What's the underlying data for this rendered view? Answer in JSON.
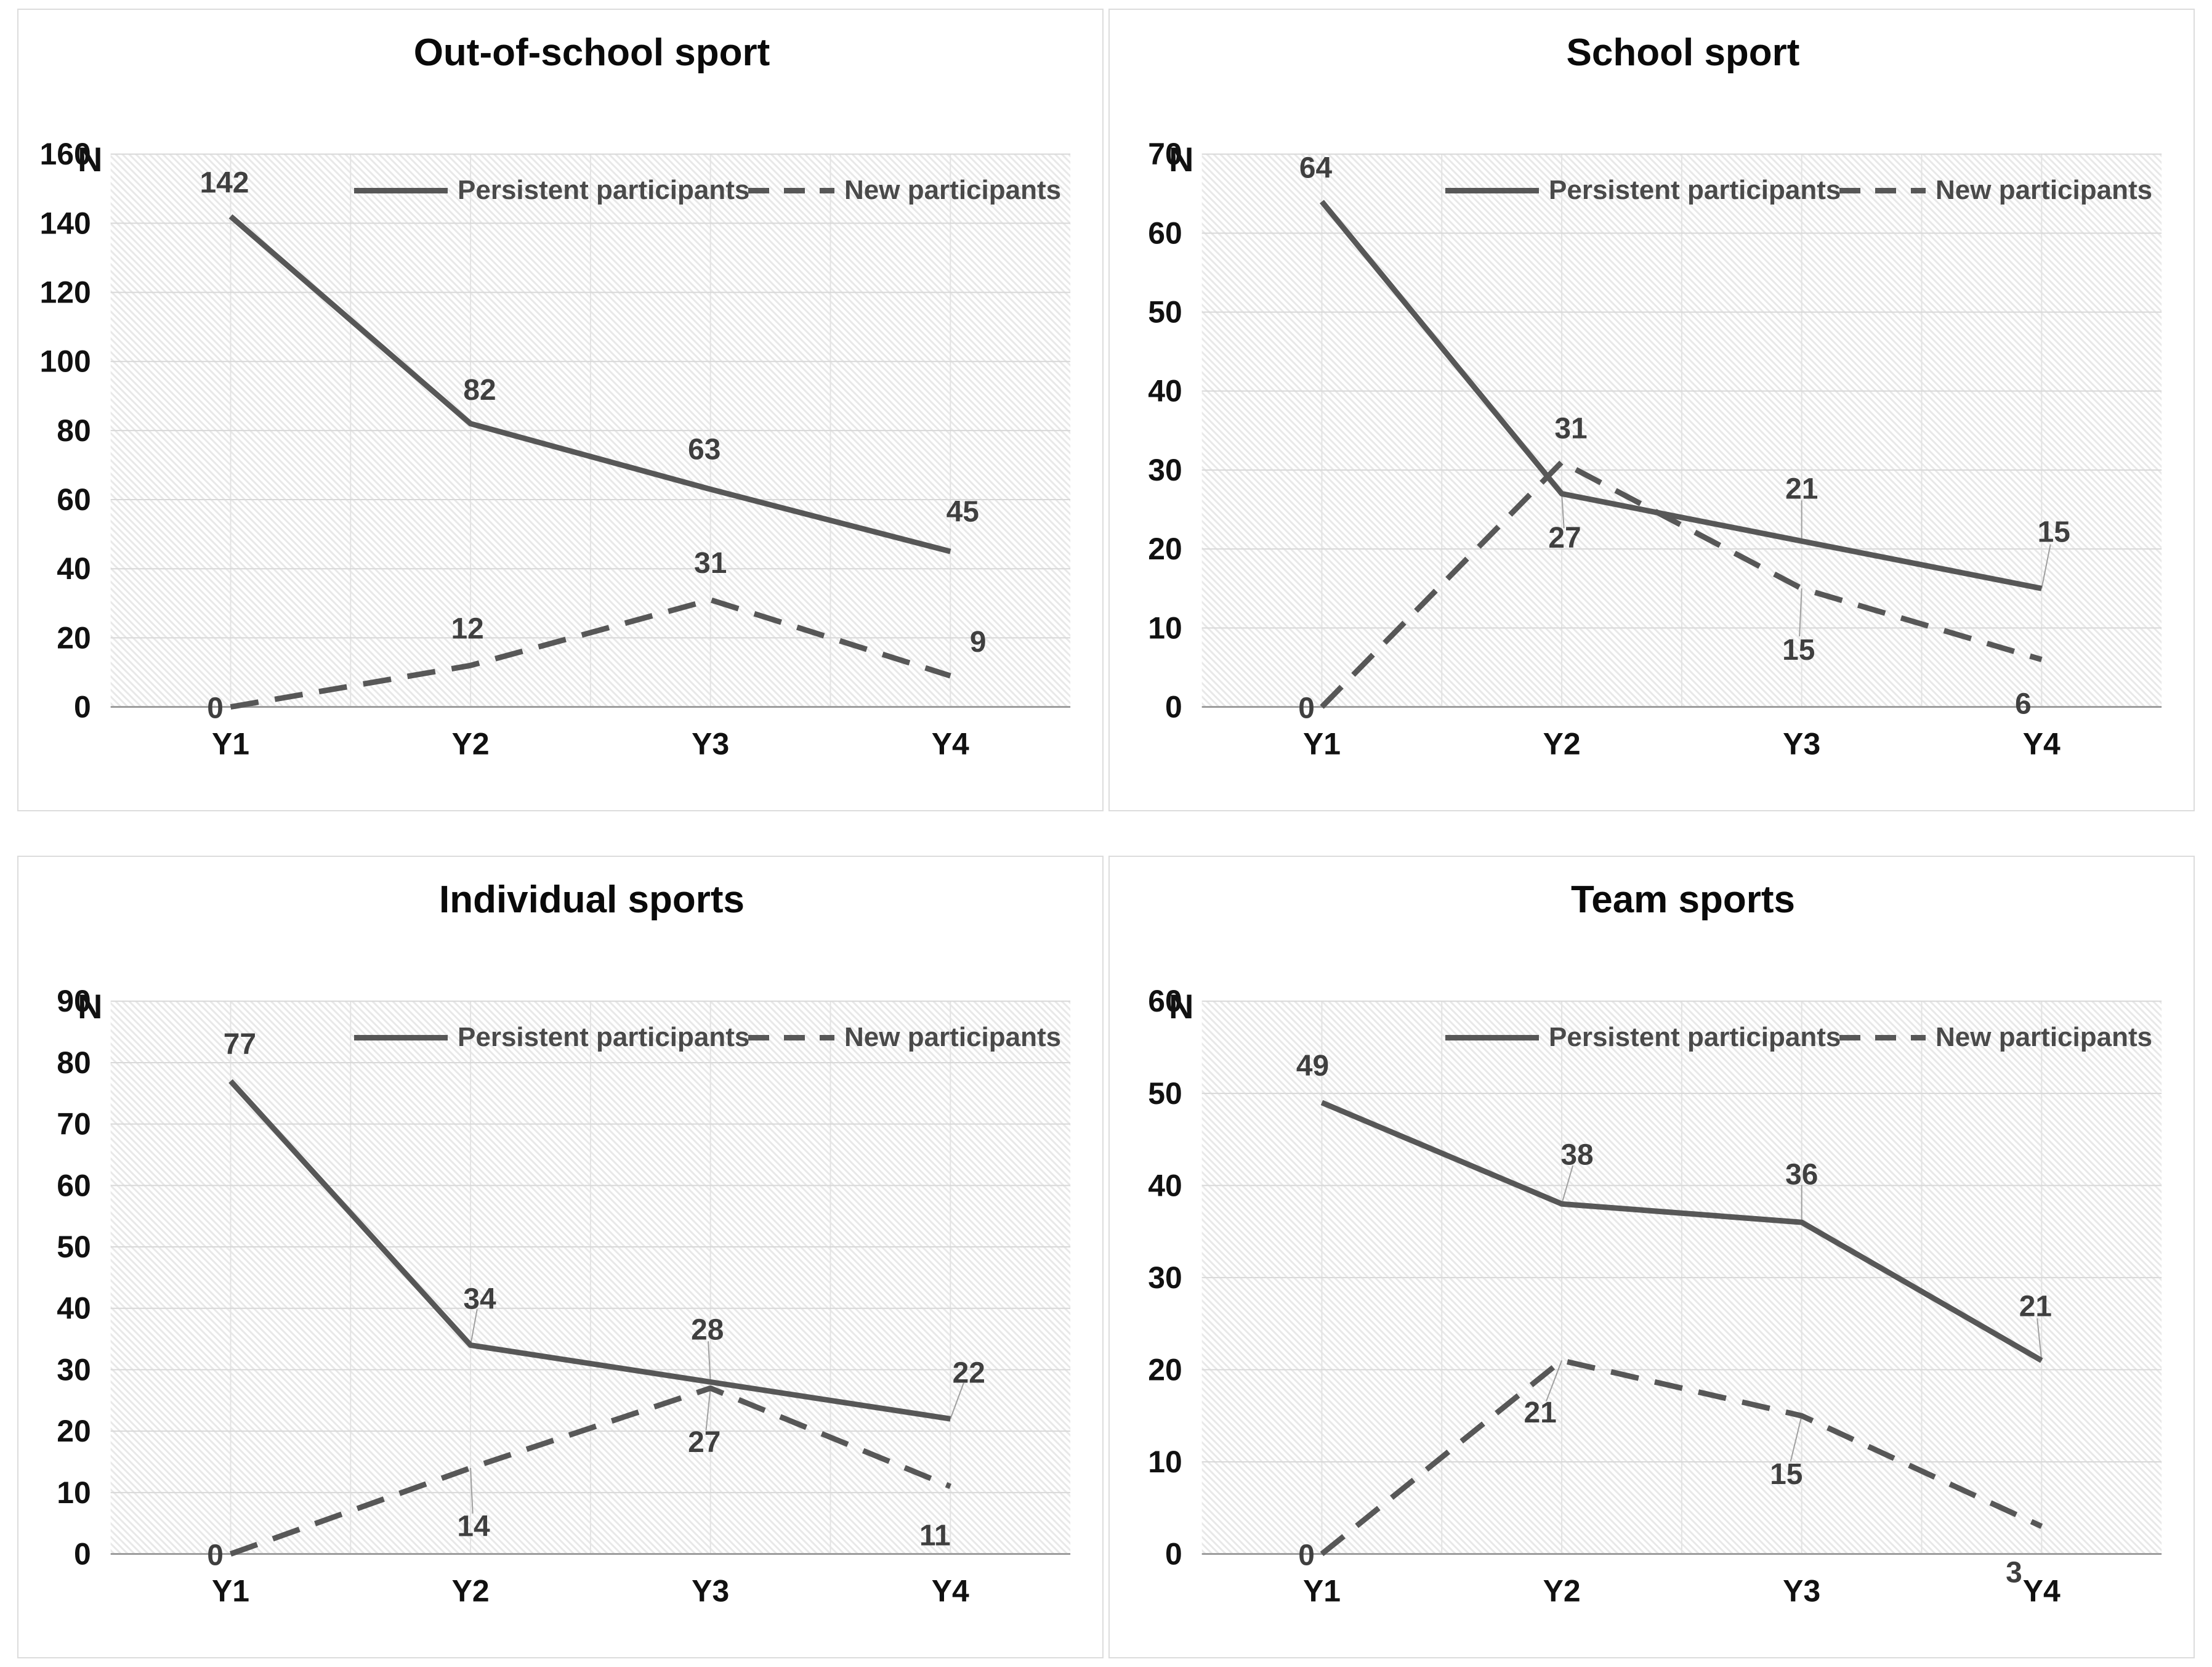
{
  "axis_label": "N",
  "legend": {
    "persistent": "Persistent participants",
    "new": "New participants"
  },
  "colors": {
    "line": "#575757",
    "data_label": "#3f3f3f",
    "tick_label": "#111111",
    "grid_h": "#d8d8d8",
    "grid_v": "#e3e3e3",
    "axis": "#9d9d9d",
    "leader": "#a0a0a0",
    "hatch": "#e8e8e8",
    "panel_border": "#dcdcdc"
  },
  "chart_data": [
    {
      "type": "line",
      "title": "Out-of-school sport",
      "ylabel": "N",
      "xlabel": "",
      "ylim": [
        0,
        160
      ],
      "ytick_step": 20,
      "grid": true,
      "legend_position": "top-inside",
      "categories": [
        "Y1",
        "Y2",
        "Y3",
        "Y4"
      ],
      "series": [
        {
          "name": "Persistent participants",
          "style": "solid",
          "values": [
            142,
            82,
            63,
            45
          ],
          "label_offsets": [
            [
              -10,
              -55,
              0
            ],
            [
              15,
              -55,
              0
            ],
            [
              -10,
              -65,
              0
            ],
            [
              20,
              -65,
              0
            ]
          ]
        },
        {
          "name": "New participants",
          "style": "dashed",
          "values": [
            0,
            12,
            31,
            9
          ],
          "label_offsets": [
            [
              -25,
              2,
              0
            ],
            [
              -5,
              -60,
              0
            ],
            [
              0,
              -60,
              0
            ],
            [
              45,
              -55,
              0
            ]
          ]
        }
      ]
    },
    {
      "type": "line",
      "title": "School sport",
      "ylabel": "N",
      "xlabel": "",
      "ylim": [
        0,
        70
      ],
      "ytick_step": 10,
      "grid": true,
      "legend_position": "top-inside",
      "categories": [
        "Y1",
        "Y2",
        "Y3",
        "Y4"
      ],
      "series": [
        {
          "name": "Persistent participants",
          "style": "solid",
          "values": [
            64,
            27,
            21,
            15
          ],
          "label_offsets": [
            [
              -10,
              -55,
              0
            ],
            [
              5,
              72,
              1
            ],
            [
              0,
              -85,
              1
            ],
            [
              20,
              -92,
              1
            ]
          ]
        },
        {
          "name": "New participants",
          "style": "dashed",
          "values": [
            0,
            31,
            15,
            6
          ],
          "label_offsets": [
            [
              -25,
              2,
              0
            ],
            [
              15,
              -55,
              0
            ],
            [
              -5,
              100,
              1
            ],
            [
              -30,
              72,
              0
            ]
          ]
        }
      ]
    },
    {
      "type": "line",
      "title": "Individual sports",
      "ylabel": "N",
      "xlabel": "",
      "ylim": [
        0,
        90
      ],
      "ytick_step": 10,
      "grid": true,
      "legend_position": "top-inside",
      "categories": [
        "Y1",
        "Y2",
        "Y3",
        "Y4"
      ],
      "series": [
        {
          "name": "Persistent participants",
          "style": "solid",
          "values": [
            77,
            34,
            28,
            22
          ],
          "label_offsets": [
            [
              15,
              -60,
              0
            ],
            [
              15,
              -75,
              1
            ],
            [
              -5,
              -85,
              1
            ],
            [
              30,
              -75,
              1
            ]
          ]
        },
        {
          "name": "New participants",
          "style": "dashed",
          "values": [
            0,
            14,
            27,
            11
          ],
          "label_offsets": [
            [
              -25,
              2,
              0
            ],
            [
              5,
              95,
              1
            ],
            [
              -10,
              88,
              1
            ],
            [
              -25,
              80,
              0
            ]
          ]
        }
      ]
    },
    {
      "type": "line",
      "title": "Team sports",
      "ylabel": "N",
      "xlabel": "",
      "ylim": [
        0,
        60
      ],
      "ytick_step": 10,
      "grid": true,
      "legend_position": "top-inside",
      "categories": [
        "Y1",
        "Y2",
        "Y3",
        "Y4"
      ],
      "series": [
        {
          "name": "Persistent participants",
          "style": "solid",
          "values": [
            49,
            38,
            36,
            21
          ],
          "label_offsets": [
            [
              -15,
              -60,
              0
            ],
            [
              25,
              -80,
              1
            ],
            [
              0,
              -78,
              1
            ],
            [
              -10,
              -88,
              1
            ]
          ]
        },
        {
          "name": "New participants",
          "style": "dashed",
          "values": [
            0,
            21,
            15,
            3
          ],
          "label_offsets": [
            [
              -25,
              2,
              0
            ],
            [
              -35,
              85,
              1
            ],
            [
              -25,
              95,
              1
            ],
            [
              -45,
              75,
              0
            ]
          ]
        }
      ]
    }
  ]
}
